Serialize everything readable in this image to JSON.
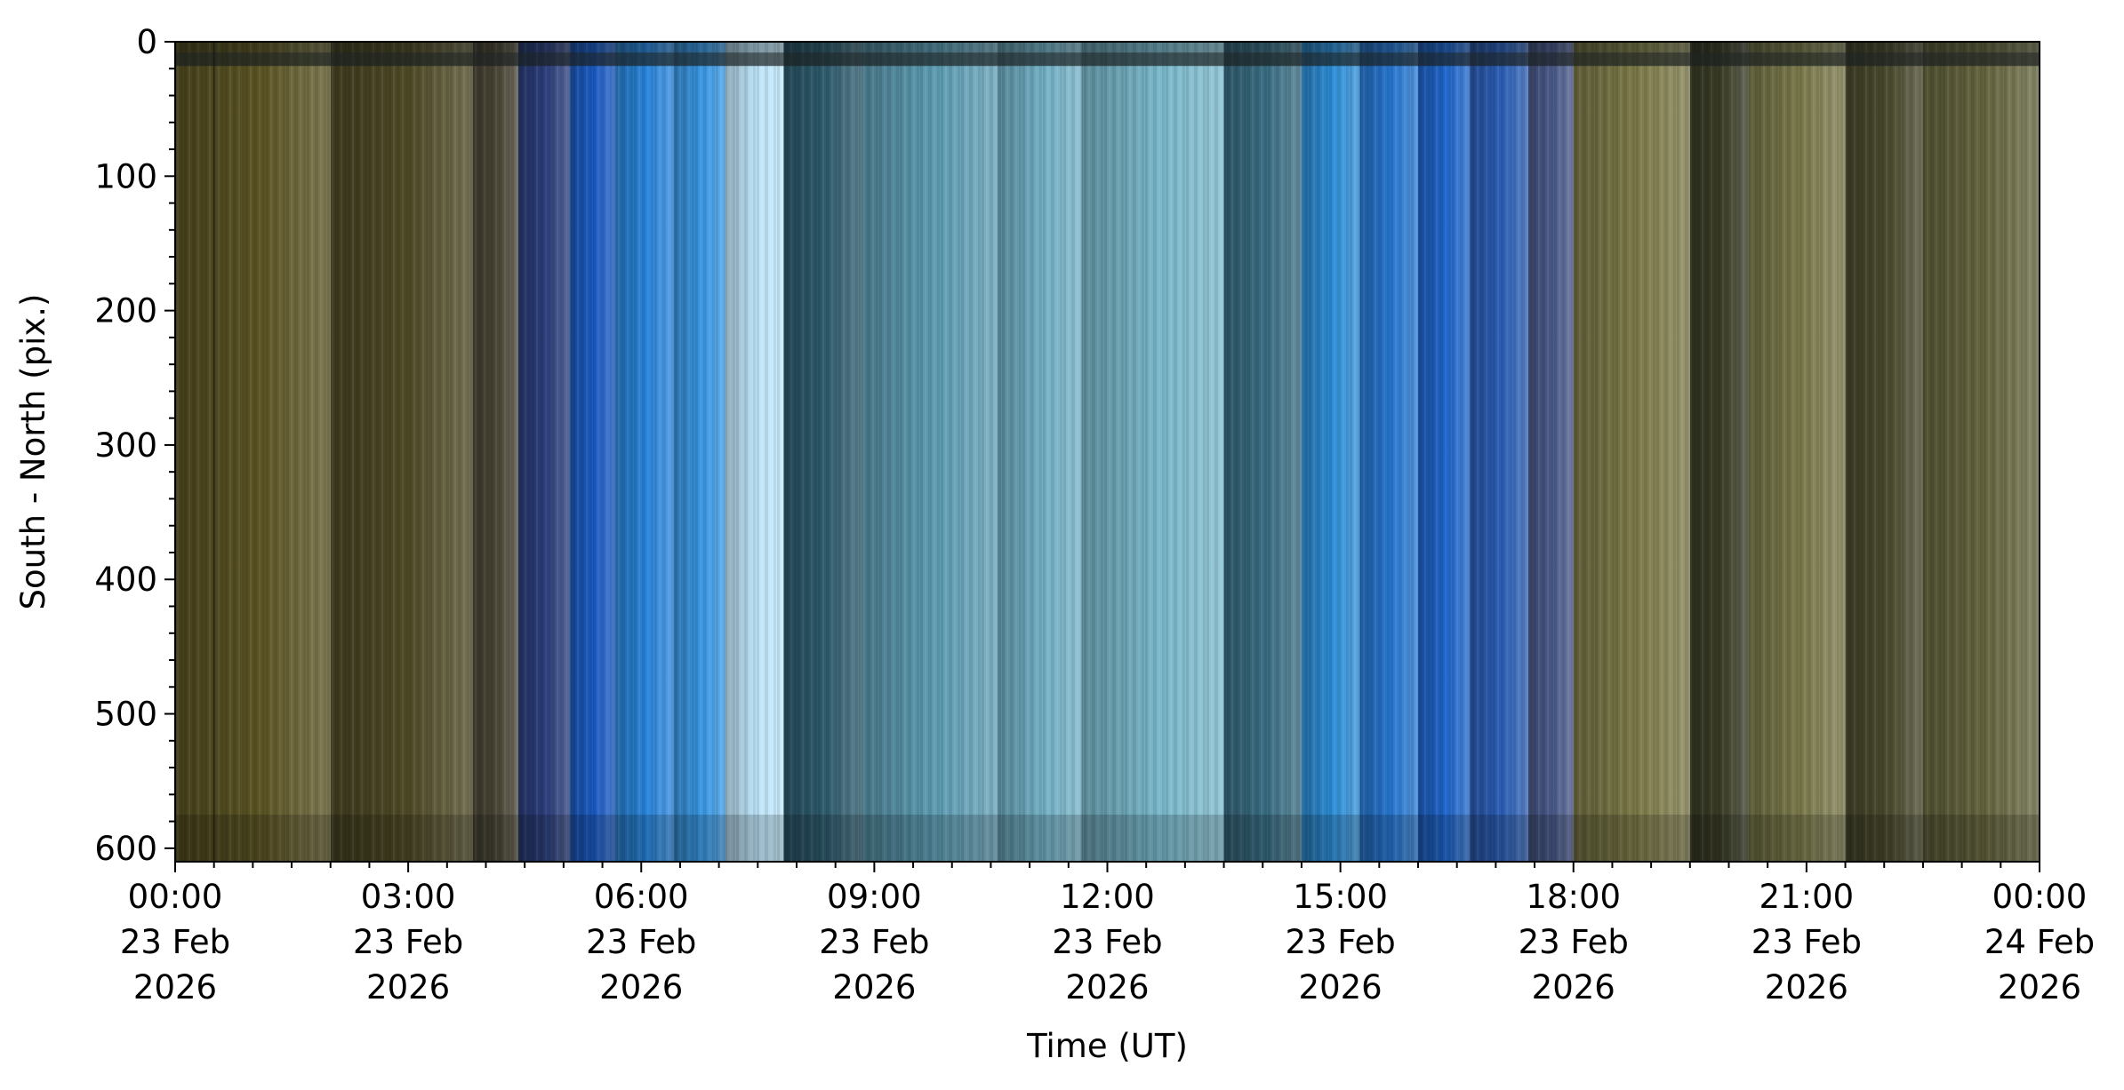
{
  "chart_data": {
    "type": "heatmap",
    "title": "",
    "xlabel": "Time (UT)",
    "ylabel": "South - North (pix.)",
    "x_range": [
      "2026-02-23T00:00",
      "2026-02-24T00:00"
    ],
    "ylim": [
      610,
      0
    ],
    "y_ticks": [
      0,
      100,
      200,
      300,
      400,
      500,
      600
    ],
    "x_ticks": [
      {
        "time": "2026-02-23T00:00",
        "label": [
          "00:00",
          "23 Feb",
          "2026"
        ]
      },
      {
        "time": "2026-02-23T03:00",
        "label": [
          "03:00",
          "23 Feb",
          "2026"
        ]
      },
      {
        "time": "2026-02-23T06:00",
        "label": [
          "06:00",
          "23 Feb",
          "2026"
        ]
      },
      {
        "time": "2026-02-23T09:00",
        "label": [
          "09:00",
          "23 Feb",
          "2026"
        ]
      },
      {
        "time": "2026-02-23T12:00",
        "label": [
          "12:00",
          "23 Feb",
          "2026"
        ]
      },
      {
        "time": "2026-02-23T15:00",
        "label": [
          "15:00",
          "23 Feb",
          "2026"
        ]
      },
      {
        "time": "2026-02-23T18:00",
        "label": [
          "18:00",
          "23 Feb",
          "2026"
        ]
      },
      {
        "time": "2026-02-23T21:00",
        "label": [
          "21:00",
          "23 Feb",
          "2026"
        ]
      },
      {
        "time": "2026-02-24T00:00",
        "label": [
          "00:00",
          "24 Feb",
          "2026"
        ]
      }
    ],
    "x_minor_tick_step_minutes": 30,
    "y_minor_tick_step": 20,
    "bands": [
      {
        "start": "00:00",
        "end": "02:00",
        "color": "#5b5424"
      },
      {
        "start": "02:00",
        "end": "03:50",
        "color": "#4f4a26"
      },
      {
        "start": "03:50",
        "end": "04:25",
        "color": "#4a4636"
      },
      {
        "start": "04:25",
        "end": "05:05",
        "color": "#2c3f7c"
      },
      {
        "start": "05:05",
        "end": "05:40",
        "color": "#1c5cc4"
      },
      {
        "start": "05:40",
        "end": "06:25",
        "color": "#2a86dc"
      },
      {
        "start": "06:25",
        "end": "07:05",
        "color": "#3a98e4"
      },
      {
        "start": "07:05",
        "end": "07:50",
        "color": "#bfe6fb"
      },
      {
        "start": "07:50",
        "end": "08:50",
        "color": "#2e5c6e"
      },
      {
        "start": "08:50",
        "end": "10:35",
        "color": "#5e9db4"
      },
      {
        "start": "10:35",
        "end": "11:40",
        "color": "#73b1c6"
      },
      {
        "start": "11:40",
        "end": "13:30",
        "color": "#7ab9cc"
      },
      {
        "start": "13:30",
        "end": "14:30",
        "color": "#3a6e84"
      },
      {
        "start": "14:30",
        "end": "15:15",
        "color": "#2f8fd8"
      },
      {
        "start": "15:15",
        "end": "16:00",
        "color": "#2878d2"
      },
      {
        "start": "16:00",
        "end": "16:40",
        "color": "#2066cc"
      },
      {
        "start": "16:40",
        "end": "17:25",
        "color": "#2c5fb6"
      },
      {
        "start": "17:25",
        "end": "18:00",
        "color": "#4a5a8a"
      },
      {
        "start": "18:00",
        "end": "19:30",
        "color": "#7d7b49"
      },
      {
        "start": "19:30",
        "end": "20:15",
        "color": "#3b3d27"
      },
      {
        "start": "20:15",
        "end": "21:30",
        "color": "#7b7a4c"
      },
      {
        "start": "21:30",
        "end": "22:30",
        "color": "#4a4a2e"
      },
      {
        "start": "22:30",
        "end": "24:00",
        "color": "#666640"
      }
    ]
  }
}
